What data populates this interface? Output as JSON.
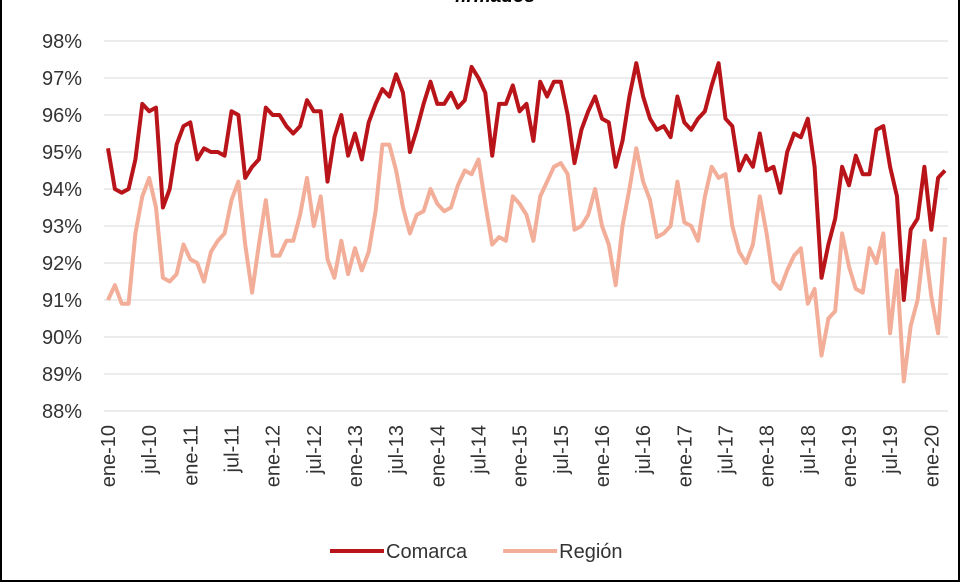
{
  "chart_data": {
    "type": "line",
    "title": "firmados",
    "categories": [
      "ene-10",
      null,
      null,
      null,
      null,
      null,
      "jul-10",
      null,
      null,
      null,
      null,
      null,
      "ene-11",
      null,
      null,
      null,
      null,
      null,
      "jul-11",
      null,
      null,
      null,
      null,
      null,
      "ene-12",
      null,
      null,
      null,
      null,
      null,
      "jul-12",
      null,
      null,
      null,
      null,
      null,
      "ene-13",
      null,
      null,
      null,
      null,
      null,
      "jul-13",
      null,
      null,
      null,
      null,
      null,
      "ene-14",
      null,
      null,
      null,
      null,
      null,
      "jul-14",
      null,
      null,
      null,
      null,
      null,
      "ene-15",
      null,
      null,
      null,
      null,
      null,
      "jul-15",
      null,
      null,
      null,
      null,
      null,
      "ene-16",
      null,
      null,
      null,
      null,
      null,
      "jul-16",
      null,
      null,
      null,
      null,
      null,
      "ene-17",
      null,
      null,
      null,
      null,
      null,
      "jul-17",
      null,
      null,
      null,
      null,
      null,
      "ene-18",
      null,
      null,
      null,
      null,
      null,
      "jul-18",
      null,
      null,
      null,
      null,
      null,
      "ene-19",
      null,
      null,
      null,
      null,
      null,
      "jul-19",
      null,
      null,
      null,
      null,
      null,
      "ene-20",
      null,
      null
    ],
    "series": [
      {
        "name": "Comarca",
        "color": "#b8141a",
        "values": [
          95.1,
          94.0,
          93.9,
          94.0,
          94.8,
          96.3,
          96.1,
          96.2,
          93.5,
          94.0,
          95.2,
          95.7,
          95.8,
          94.8,
          95.1,
          95.0,
          95.0,
          94.9,
          96.1,
          96.0,
          94.3,
          94.6,
          94.8,
          96.2,
          96.0,
          96.0,
          95.7,
          95.5,
          95.7,
          96.4,
          96.1,
          96.1,
          94.2,
          95.4,
          96.0,
          94.9,
          95.5,
          94.8,
          95.8,
          96.3,
          96.7,
          96.5,
          97.1,
          96.6,
          95.0,
          95.6,
          96.3,
          96.9,
          96.3,
          96.3,
          96.6,
          96.2,
          96.4,
          97.3,
          97.0,
          96.6,
          94.9,
          96.3,
          96.3,
          96.8,
          96.1,
          96.3,
          95.3,
          96.9,
          96.5,
          96.9,
          96.9,
          96.0,
          94.7,
          95.6,
          96.1,
          96.5,
          95.9,
          95.8,
          94.6,
          95.3,
          96.5,
          97.4,
          96.5,
          95.9,
          95.6,
          95.7,
          95.4,
          96.5,
          95.8,
          95.6,
          95.9,
          96.1,
          96.8,
          97.4,
          95.9,
          95.7,
          94.5,
          94.9,
          94.6,
          95.5,
          94.5,
          94.6,
          93.9,
          95.0,
          95.5,
          95.4,
          95.9,
          94.6,
          91.6,
          92.5,
          93.2,
          94.6,
          94.1,
          94.9,
          94.4,
          94.4,
          95.6,
          95.7,
          94.6,
          93.8,
          91.0,
          92.9,
          93.2,
          94.6,
          92.9,
          94.3,
          94.5
        ]
      },
      {
        "name": "Región",
        "color": "#f2ae98",
        "values": [
          91.0,
          91.4,
          90.9,
          90.9,
          92.8,
          93.8,
          94.3,
          93.5,
          91.6,
          91.5,
          91.7,
          92.5,
          92.1,
          92.0,
          91.5,
          92.3,
          92.6,
          92.8,
          93.7,
          94.2,
          92.5,
          91.2,
          92.5,
          93.7,
          92.2,
          92.2,
          92.6,
          92.6,
          93.3,
          94.3,
          93.0,
          93.8,
          92.1,
          91.6,
          92.6,
          91.7,
          92.4,
          91.8,
          92.3,
          93.4,
          95.2,
          95.2,
          94.5,
          93.5,
          92.8,
          93.3,
          93.4,
          94.0,
          93.6,
          93.4,
          93.5,
          94.1,
          94.5,
          94.4,
          94.8,
          93.6,
          92.5,
          92.7,
          92.6,
          93.8,
          93.6,
          93.3,
          92.6,
          93.8,
          94.2,
          94.6,
          94.7,
          94.4,
          92.9,
          93.0,
          93.3,
          94.0,
          93.0,
          92.5,
          91.4,
          93.0,
          94.0,
          95.1,
          94.2,
          93.7,
          92.7,
          92.8,
          93.0,
          94.2,
          93.1,
          93.0,
          92.6,
          93.8,
          94.6,
          94.3,
          94.4,
          93.0,
          92.3,
          92.0,
          92.5,
          93.8,
          92.8,
          91.5,
          91.3,
          91.8,
          92.2,
          92.4,
          90.9,
          91.3,
          89.5,
          90.5,
          90.7,
          92.8,
          91.9,
          91.3,
          91.2,
          92.4,
          92.0,
          92.8,
          90.1,
          91.8,
          88.8,
          90.3,
          91.0,
          92.6,
          91.1,
          90.1,
          92.7
        ]
      }
    ],
    "ylim": [
      88,
      98
    ],
    "yticks": [
      {
        "value": 88,
        "label": "88%"
      },
      {
        "value": 89,
        "label": "89%"
      },
      {
        "value": 90,
        "label": "90%"
      },
      {
        "value": 91,
        "label": "91%"
      },
      {
        "value": 92,
        "label": "92%"
      },
      {
        "value": 93,
        "label": "93%"
      },
      {
        "value": 94,
        "label": "94%"
      },
      {
        "value": 95,
        "label": "95%"
      },
      {
        "value": 96,
        "label": "96%"
      },
      {
        "value": 97,
        "label": "97%"
      },
      {
        "value": 98,
        "label": "98%"
      }
    ],
    "grid": true,
    "legend": "bottom"
  }
}
